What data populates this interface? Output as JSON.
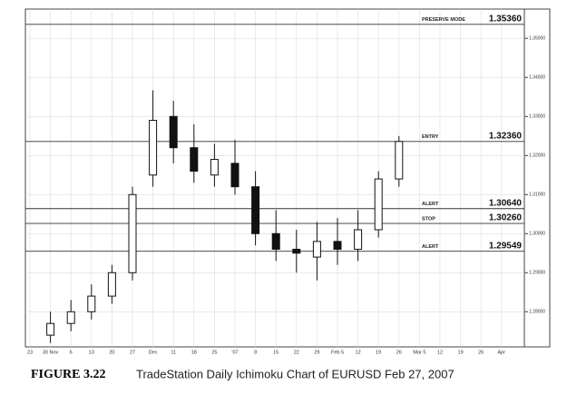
{
  "chart_data": {
    "type": "candlestick",
    "title": "TradeStation Daily Ichimoku Chart of EURUSD Feb 27, 2007",
    "figure_label": "FIGURE 3.22",
    "categories": [
      "23",
      "30 Nov",
      "6",
      "13",
      "20",
      "27",
      "Dec",
      "11",
      "18",
      "25",
      "'07",
      "8",
      "15",
      "22",
      "29",
      "Feb 5",
      "12",
      "19",
      "26",
      "Mar 5",
      "12",
      "19",
      "26",
      "Apr"
    ],
    "candles": {
      "x": [
        1,
        2,
        3,
        4,
        5,
        6,
        7,
        8,
        9,
        10,
        11,
        12,
        13,
        14,
        15,
        16,
        17,
        18
      ],
      "open": [
        1.274,
        1.277,
        1.28,
        1.284,
        1.29,
        1.315,
        1.33,
        1.322,
        1.315,
        1.318,
        1.312,
        1.3,
        1.296,
        1.294,
        1.298,
        1.296,
        1.301,
        1.314
      ],
      "high": [
        1.28,
        1.283,
        1.287,
        1.292,
        1.312,
        1.3367,
        1.334,
        1.328,
        1.323,
        1.324,
        1.316,
        1.306,
        1.301,
        1.303,
        1.304,
        1.306,
        1.316,
        1.325
      ],
      "low": [
        1.272,
        1.275,
        1.278,
        1.282,
        1.288,
        1.312,
        1.318,
        1.313,
        1.312,
        1.31,
        1.297,
        1.293,
        1.29,
        1.288,
        1.292,
        1.293,
        1.299,
        1.312
      ],
      "close": [
        1.277,
        1.28,
        1.284,
        1.29,
        1.31,
        1.329,
        1.322,
        1.316,
        1.319,
        1.312,
        1.3,
        1.296,
        1.295,
        1.298,
        1.296,
        1.301,
        1.314,
        1.3236
      ]
    },
    "levels": [
      {
        "name": "PRESERVE MODE",
        "value": 1.3536,
        "label": "1.35360"
      },
      {
        "name": "ENTRY",
        "value": 1.3236,
        "label": "1.32360"
      },
      {
        "name": "ALERT",
        "value": 1.3064,
        "label": "1.30640"
      },
      {
        "name": "STOP",
        "value": 1.3026,
        "label": "1.30260"
      },
      {
        "name": "ALERT",
        "value": 1.29549,
        "label": "1.29549"
      }
    ],
    "ylim": [
      1.271,
      1.3575
    ],
    "yticks": [
      {
        "value": 1.35,
        "label": "1.35000"
      },
      {
        "value": 1.34,
        "label": "1.34000"
      },
      {
        "value": 1.33,
        "label": "1.33000"
      },
      {
        "value": 1.32,
        "label": "1.32000"
      },
      {
        "value": 1.31,
        "label": "1.31000"
      },
      {
        "value": 1.3,
        "label": "1.30000"
      },
      {
        "value": 1.29,
        "label": "1.29000"
      },
      {
        "value": 1.28,
        "label": "1.28000"
      }
    ],
    "grid": true
  }
}
